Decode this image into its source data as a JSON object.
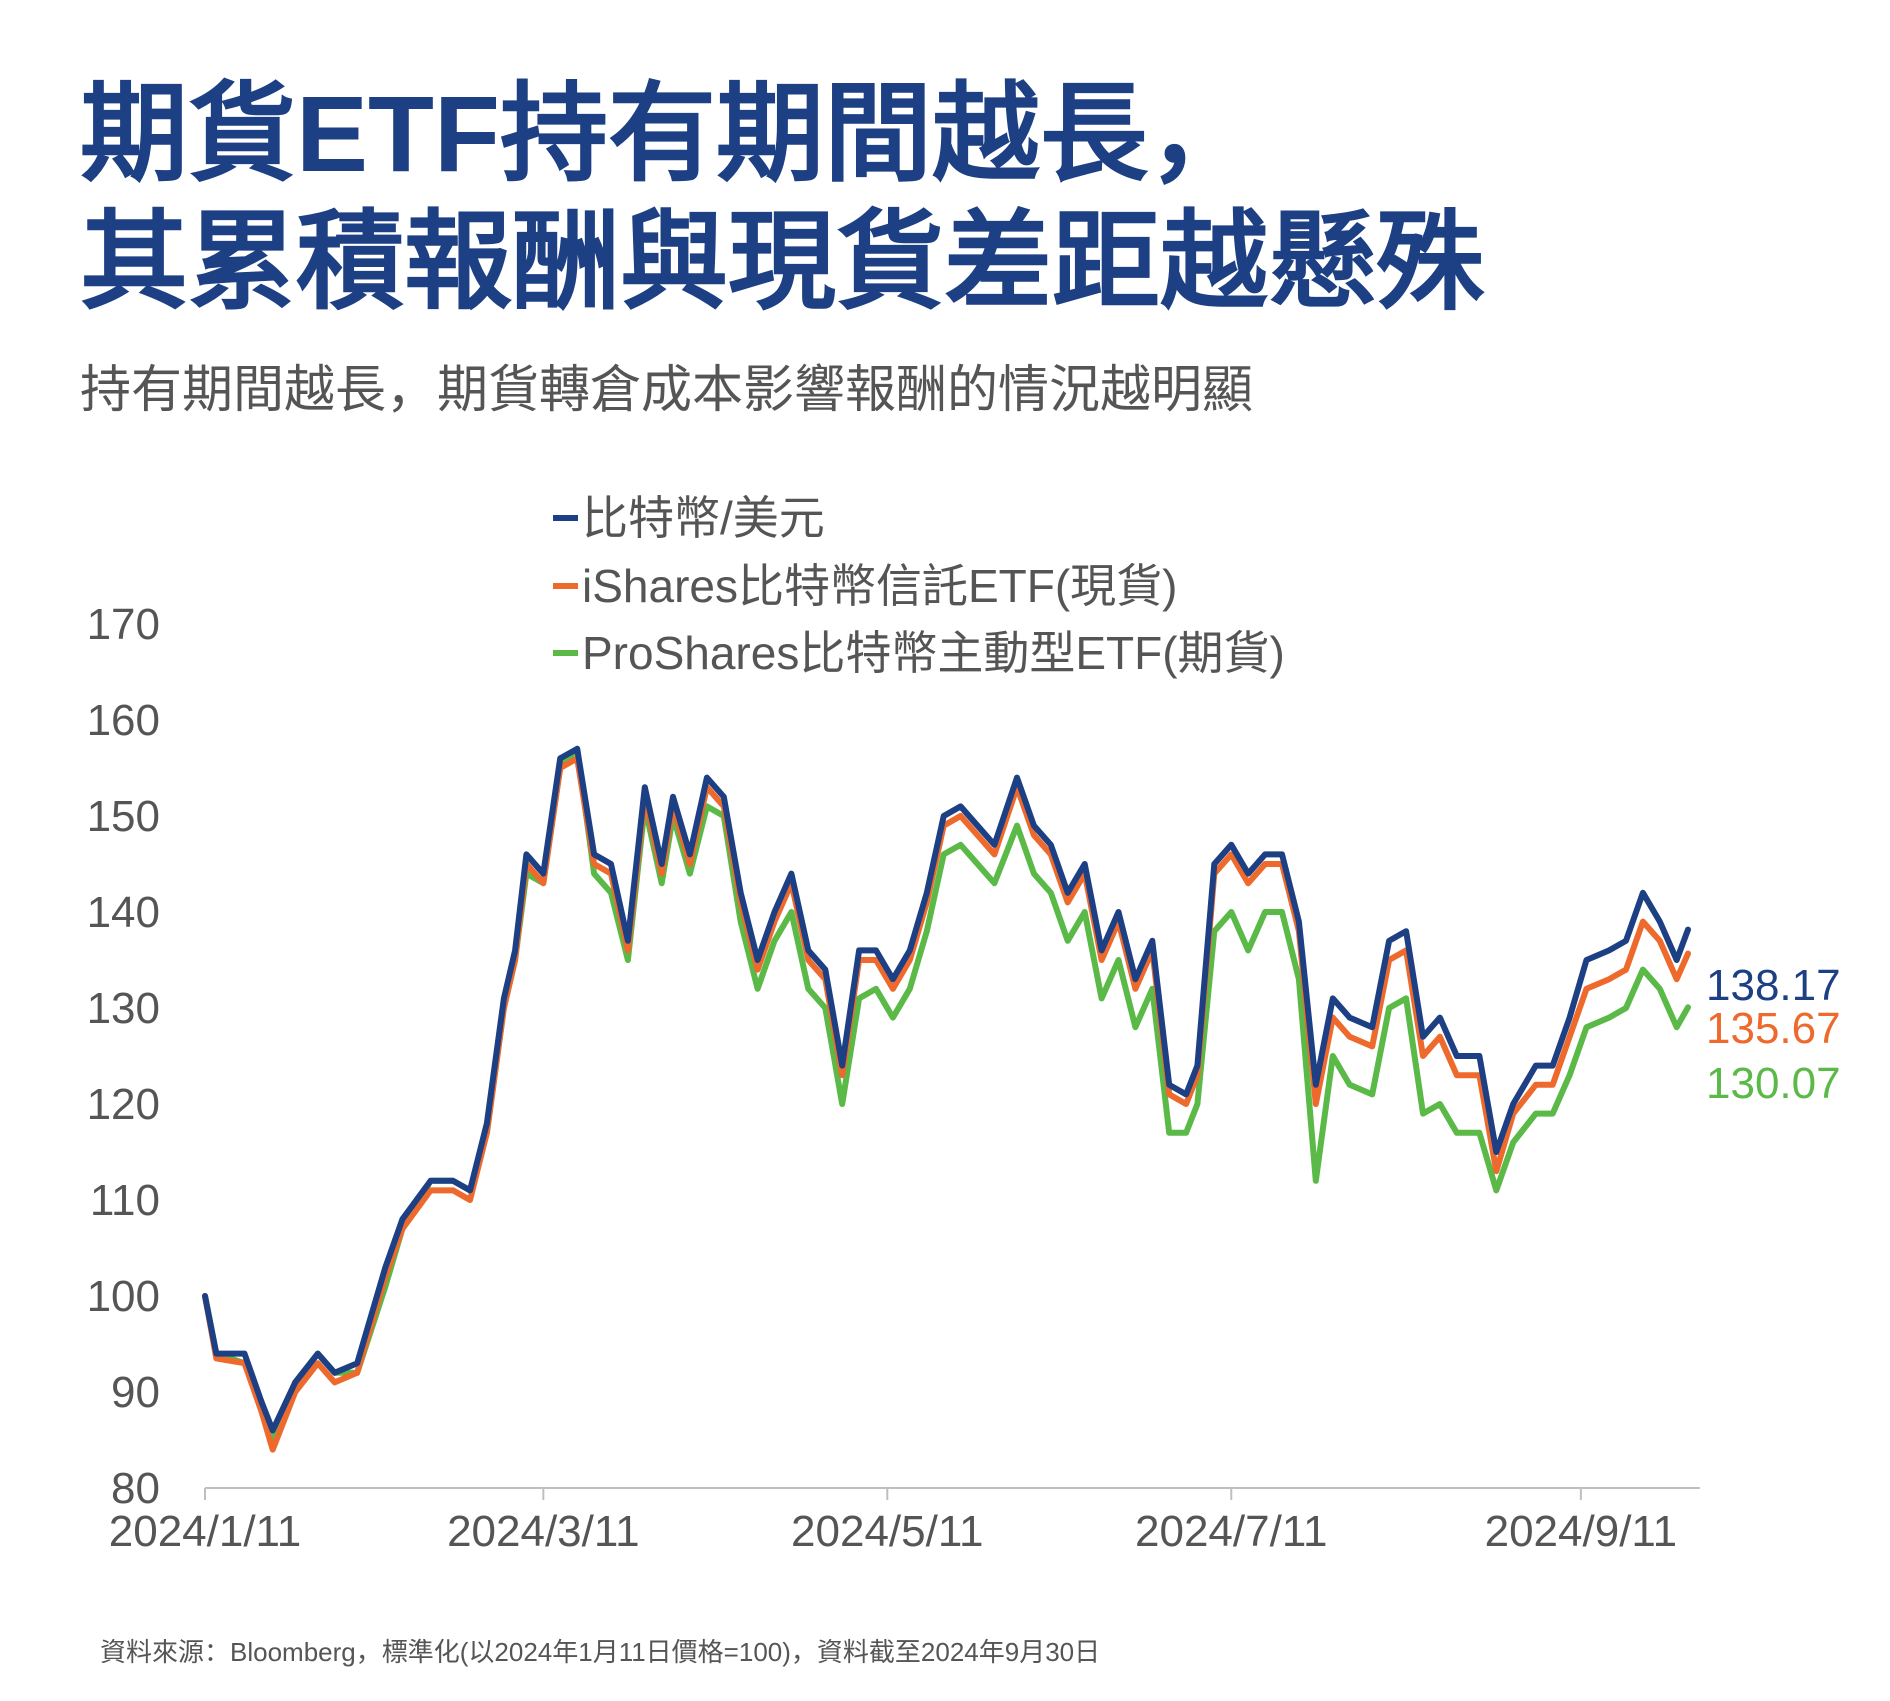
{
  "title": {
    "line1": "期貨ETF持有期間越長，",
    "line2": "其累積報酬與現貨差距越懸殊"
  },
  "subtitle": "持有期間越長，期貨轉倉成本影響報酬的情況越明顯",
  "source": "資料來源：Bloomberg，標準化(以2024年1月11日價格=100)，資料截至2024年9月30日",
  "chart_data": {
    "type": "line",
    "x_start": "2024-01-11",
    "x_end": "2024-09-30",
    "xticks": [
      {
        "date": "2024-01-11",
        "label": "2024/1/11"
      },
      {
        "date": "2024-03-11",
        "label": "2024/3/11"
      },
      {
        "date": "2024-05-11",
        "label": "2024/5/11"
      },
      {
        "date": "2024-07-11",
        "label": "2024/7/11"
      },
      {
        "date": "2024-09-11",
        "label": "2024/9/11"
      }
    ],
    "ylim": [
      80,
      170
    ],
    "yticks": [
      80,
      90,
      100,
      110,
      120,
      130,
      140,
      150,
      160,
      170
    ],
    "grid": false,
    "legend_position": "top-center",
    "dates": [
      "2024-01-11",
      "2024-01-13",
      "2024-01-18",
      "2024-01-21",
      "2024-01-23",
      "2024-01-27",
      "2024-01-31",
      "2024-02-03",
      "2024-02-07",
      "2024-02-12",
      "2024-02-15",
      "2024-02-20",
      "2024-02-24",
      "2024-02-27",
      "2024-03-01",
      "2024-03-04",
      "2024-03-06",
      "2024-03-08",
      "2024-03-11",
      "2024-03-14",
      "2024-03-17",
      "2024-03-20",
      "2024-03-23",
      "2024-03-26",
      "2024-03-29",
      "2024-04-01",
      "2024-04-03",
      "2024-04-06",
      "2024-04-09",
      "2024-04-12",
      "2024-04-15",
      "2024-04-18",
      "2024-04-21",
      "2024-04-24",
      "2024-04-27",
      "2024-04-30",
      "2024-05-03",
      "2024-05-06",
      "2024-05-09",
      "2024-05-12",
      "2024-05-15",
      "2024-05-18",
      "2024-05-21",
      "2024-05-24",
      "2024-05-27",
      "2024-05-30",
      "2024-06-03",
      "2024-06-06",
      "2024-06-09",
      "2024-06-12",
      "2024-06-15",
      "2024-06-18",
      "2024-06-21",
      "2024-06-24",
      "2024-06-27",
      "2024-06-30",
      "2024-07-03",
      "2024-07-05",
      "2024-07-08",
      "2024-07-11",
      "2024-07-14",
      "2024-07-17",
      "2024-07-20",
      "2024-07-23",
      "2024-07-26",
      "2024-07-29",
      "2024-08-01",
      "2024-08-05",
      "2024-08-08",
      "2024-08-11",
      "2024-08-14",
      "2024-08-17",
      "2024-08-20",
      "2024-08-24",
      "2024-08-27",
      "2024-08-30",
      "2024-09-03",
      "2024-09-06",
      "2024-09-09",
      "2024-09-12",
      "2024-09-16",
      "2024-09-19",
      "2024-09-22",
      "2024-09-25",
      "2024-09-28",
      "2024-09-30"
    ],
    "series": [
      {
        "name": "比特幣/美元",
        "color": "#1d3f83",
        "end_label": "138.17",
        "values": [
          100,
          94,
          94,
          89,
          86,
          91,
          94,
          92,
          93,
          103,
          108,
          112,
          112,
          111,
          118,
          131,
          136,
          146,
          144,
          156,
          157,
          146,
          145,
          137,
          153,
          145,
          152,
          146,
          154,
          152,
          142,
          135,
          140,
          144,
          136,
          134,
          124,
          136,
          136,
          133,
          136,
          142,
          150,
          151,
          149,
          147,
          154,
          149,
          147,
          142,
          145,
          136,
          140,
          133,
          137,
          122,
          121,
          124,
          145,
          147,
          144,
          146,
          146,
          139,
          122,
          131,
          129,
          128,
          137,
          138,
          127,
          129,
          125,
          125,
          115,
          120,
          124,
          124,
          129,
          135,
          136,
          137,
          142,
          139,
          135,
          138.17
        ]
      },
      {
        "name": "iShares比特幣信託ETF(現貨)",
        "color": "#ee6a2c",
        "end_label": "135.67",
        "values": [
          100,
          93.5,
          93,
          88,
          84,
          90,
          93,
          91,
          92,
          102,
          107,
          111,
          111,
          110,
          117,
          130,
          135,
          145,
          143,
          155,
          156,
          145,
          144,
          136,
          152,
          144,
          151,
          145,
          153,
          151,
          141,
          134,
          139,
          143,
          135,
          133,
          123,
          135,
          135,
          132,
          135,
          141,
          149,
          150,
          148,
          146,
          153,
          148,
          146,
          141,
          144,
          135,
          139,
          132,
          136,
          121,
          120,
          123,
          144,
          146,
          143,
          145,
          145,
          138,
          120,
          129,
          127,
          126,
          135,
          136,
          125,
          127,
          123,
          123,
          113,
          119,
          122,
          122,
          127,
          132,
          133,
          134,
          139,
          137,
          133,
          135.67
        ]
      },
      {
        "name": "ProShares比特幣主動型ETF(期貨)",
        "color": "#5ab947",
        "end_label": "130.07",
        "values": [
          100,
          94,
          93,
          89,
          85,
          91,
          94,
          92,
          92,
          101,
          107,
          112,
          112,
          111,
          117,
          130,
          135,
          144,
          143,
          155,
          157,
          144,
          142,
          135,
          151,
          143,
          150,
          144,
          151,
          150,
          139,
          132,
          137,
          140,
          132,
          130,
          120,
          131,
          132,
          129,
          132,
          138,
          146,
          147,
          145,
          143,
          149,
          144,
          142,
          137,
          140,
          131,
          135,
          128,
          132,
          117,
          117,
          120,
          138,
          140,
          136,
          140,
          140,
          133,
          112,
          125,
          122,
          121,
          130,
          131,
          119,
          120,
          117,
          117,
          111,
          116,
          119,
          119,
          123,
          128,
          129,
          130,
          134,
          132,
          128,
          130.07
        ]
      }
    ]
  }
}
